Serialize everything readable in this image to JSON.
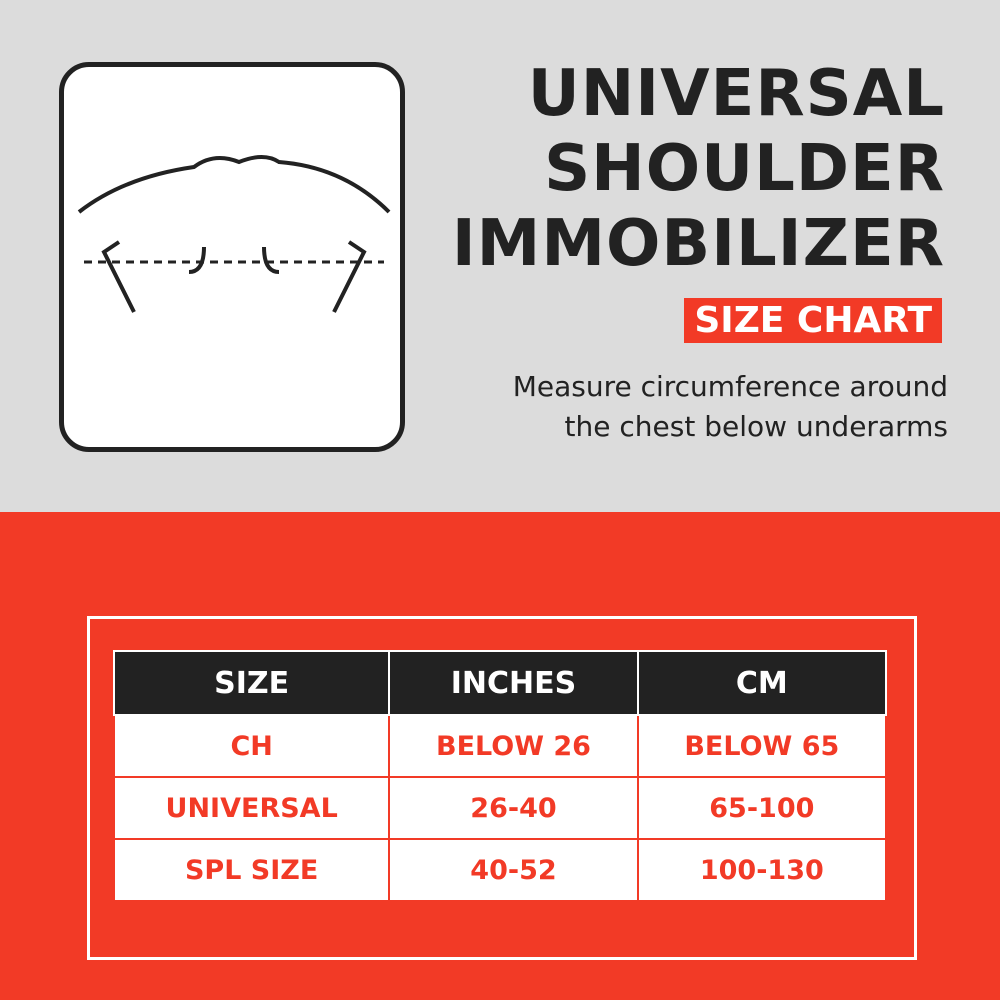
{
  "header": {
    "title_lines": [
      "UNIVERSAL",
      "SHOULDER",
      "IMMOBILIZER"
    ],
    "badge": "SIZE CHART",
    "note_lines": [
      "Measure circumference around",
      "the chest below underarms"
    ]
  },
  "table": {
    "columns": [
      "SIZE",
      "INCHES",
      "CM"
    ],
    "rows": [
      [
        "CH",
        "BELOW 26",
        "BELOW 65"
      ],
      [
        "UNIVERSAL",
        "26-40",
        "65-100"
      ],
      [
        "SPL SIZE",
        "40-52",
        "100-130"
      ]
    ]
  }
}
